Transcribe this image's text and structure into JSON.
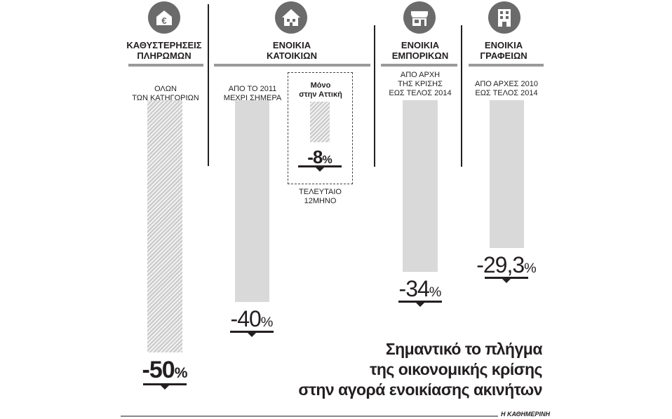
{
  "chart_data": {
    "type": "bar",
    "title": "Σημαντικό το πλήγμα της οικονομικής κρίσης στην αγορά ενοικίασης ακινήτων",
    "title_lines": [
      "Σημαντικό το πλήγμα",
      "της οικονομικής κρίσης",
      "στην αγορά ενοικίασης ακινήτων"
    ],
    "groups": [
      {
        "header": [
          "ΚΑΘΥΣΤΕΡΗΣΕΙΣ",
          "ΠΛΗΡΩΜΩΝ"
        ],
        "icon": "euro-building-icon",
        "bars": [
          {
            "label": [
              "ΟΛΩΝ",
              "ΤΩΝ ΚΑΤΗΓΟΡΙΩΝ"
            ],
            "value": -50,
            "num_text": "-50",
            "pct_text": "%",
            "style": "hatched"
          }
        ]
      },
      {
        "header": [
          "ΕΝΟΙΚΙΑ",
          "ΚΑΤΟΙΚΙΩΝ"
        ],
        "icon": "house-icon",
        "bars": [
          {
            "label": [
              "ΑΠΟ ΤΟ 2011",
              "ΜΕΧΡΙ ΣΗΜΕΡΑ"
            ],
            "value": -40,
            "num_text": "-40",
            "pct_text": "%",
            "style": "solid"
          },
          {
            "label": [
              "Μόνο",
              "στην Αττική"
            ],
            "value": -8,
            "num_text": "-8",
            "pct_text": "%",
            "style": "hatched",
            "note": [
              "ΤΕΛΕΥΤΑΙΟ",
              "12ΜΗΝΟ"
            ]
          }
        ]
      },
      {
        "header": [
          "ΕΝΟΙΚΙΑ",
          "ΕΜΠΟΡΙΚΩΝ"
        ],
        "icon": "shop-icon",
        "bars": [
          {
            "label": [
              "ΑΠΟ ΑΡΧΗ",
              "ΤΗΣ ΚΡΙΣΗΣ",
              "ΕΩΣ ΤΕΛΟΣ 2014"
            ],
            "value": -34,
            "num_text": "-34",
            "pct_text": "%",
            "style": "solid"
          }
        ]
      },
      {
        "header": [
          "ΕΝΟΙΚΙΑ",
          "ΓΡΑΦΕΙΩΝ"
        ],
        "icon": "office-building-icon",
        "bars": [
          {
            "label": [
              "ΑΠΟ ΑΡΧΕΣ 2010",
              "ΕΩΣ ΤΕΛΟΣ 2014"
            ],
            "value": -29.3,
            "num_text": "-29,3",
            "pct_text": "%",
            "style": "solid"
          }
        ]
      }
    ],
    "units": "%",
    "colors": {
      "bar": "#d9d9d9",
      "hatch": "#c9c9c9",
      "text": "#231f20",
      "icon": "#6b6b6b",
      "rule": "#9a9a9a"
    }
  },
  "source": "Η ΚΑΘΗΜΕΡΙΝΗ"
}
